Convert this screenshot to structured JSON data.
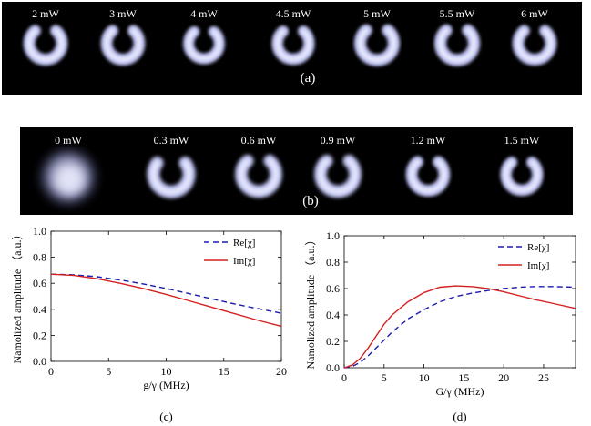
{
  "panel_a": {
    "powers": [
      "2 mW",
      "3 mW",
      "4 mW",
      "4.5 mW",
      "5 mW",
      "5.5 mW",
      "6 mW"
    ],
    "tag": "(a)"
  },
  "panel_b": {
    "powers": [
      "0 mW",
      "0.3 mW",
      "0.6 mW",
      "0.9 mW",
      "1.2 mW",
      "1.5 mW"
    ],
    "tag": "(b)"
  },
  "colors": {
    "strip_bg": "#000000",
    "spot": "#c8ccff",
    "re_line": "#1c1cb0",
    "im_line": "#d42020"
  },
  "chart_data": [
    {
      "type": "line",
      "caption": "(c)",
      "xlabel": "g/γ (MHz)",
      "ylabel": "Namolized amplitude （a.u.）",
      "xlim": [
        0,
        20
      ],
      "ylim": [
        0,
        1.0
      ],
      "xticks": [
        0,
        5,
        10,
        15,
        20
      ],
      "yticks": [
        "0.0",
        "0.2",
        "0.4",
        "0.6",
        "0.8",
        "1.0"
      ],
      "legend_position": "top-right",
      "x": [
        0,
        2,
        4,
        6,
        8,
        10,
        12,
        14,
        16,
        18,
        20
      ],
      "series": [
        {
          "name": "Re[χ]",
          "style": "dashed",
          "values": [
            0.67,
            0.665,
            0.65,
            0.625,
            0.595,
            0.56,
            0.52,
            0.48,
            0.44,
            0.405,
            0.37
          ]
        },
        {
          "name": "Im[χ]",
          "style": "solid",
          "values": [
            0.67,
            0.66,
            0.635,
            0.6,
            0.56,
            0.515,
            0.465,
            0.415,
            0.365,
            0.315,
            0.27
          ]
        }
      ]
    },
    {
      "type": "line",
      "caption": "(d)",
      "xlabel": "G/γ (MHz)",
      "ylabel": "Namolized amplitude （a.u.）",
      "xlim": [
        0,
        29
      ],
      "ylim": [
        0,
        1.0
      ],
      "xticks": [
        0,
        5,
        10,
        15,
        20,
        25
      ],
      "yticks": [
        "0.0",
        "0.2",
        "0.4",
        "0.6",
        "0.8",
        "1.0"
      ],
      "legend_position": "top-right",
      "x": [
        0,
        1,
        2,
        3,
        4,
        5,
        6,
        8,
        10,
        12,
        14,
        16,
        18,
        20,
        22,
        24,
        26,
        29
      ],
      "series": [
        {
          "name": "Re[χ]",
          "style": "dashed",
          "values": [
            0,
            0.01,
            0.04,
            0.09,
            0.15,
            0.21,
            0.27,
            0.37,
            0.44,
            0.5,
            0.54,
            0.565,
            0.585,
            0.6,
            0.61,
            0.615,
            0.615,
            0.61
          ]
        },
        {
          "name": "Im[χ]",
          "style": "solid",
          "values": [
            0,
            0.02,
            0.07,
            0.15,
            0.24,
            0.33,
            0.4,
            0.5,
            0.57,
            0.61,
            0.62,
            0.615,
            0.6,
            0.575,
            0.545,
            0.515,
            0.49,
            0.45
          ]
        }
      ]
    }
  ]
}
